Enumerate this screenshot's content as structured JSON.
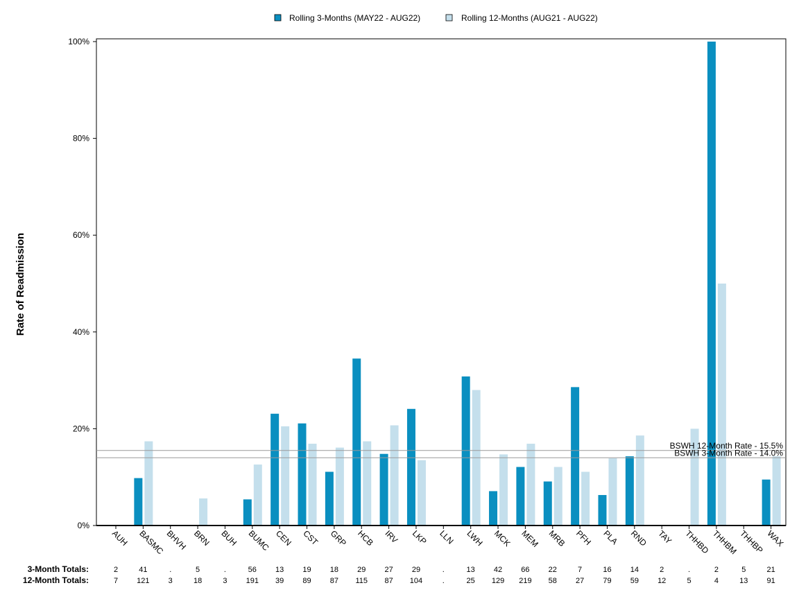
{
  "chart_data": {
    "type": "bar",
    "ylabel": "Rate of Readmission",
    "ylim": [
      0,
      100
    ],
    "yticks": [
      0,
      20,
      40,
      60,
      80,
      100
    ],
    "ytick_labels": [
      "0%",
      "20%",
      "40%",
      "60%",
      "80%",
      "100%"
    ],
    "legend_position": "top-center",
    "grid": false,
    "colors": {
      "series_3m": "#0a8fc0",
      "series_12m": "#c4dfec",
      "reference": "#999999"
    },
    "categories": [
      "AUH",
      "BASMC",
      "BHVH",
      "BRN",
      "BUH",
      "BUMC",
      "CEN",
      "CST",
      "GRP",
      "HCB",
      "IRV",
      "LKP",
      "LLN",
      "LWH",
      "MCK",
      "MEM",
      "MRB",
      "PFH",
      "PLA",
      "RND",
      "TAY",
      "THHBD",
      "THHBM",
      "THHBP",
      "WAX"
    ],
    "series": [
      {
        "name": "Rolling 3-Months (MAY22 - AUG22)",
        "values": [
          0,
          9.8,
          null,
          0,
          null,
          5.4,
          23.1,
          21.1,
          11.1,
          34.5,
          14.8,
          24.1,
          null,
          30.8,
          7.1,
          12.1,
          9.1,
          28.6,
          6.3,
          14.3,
          0,
          null,
          100,
          0,
          9.5
        ]
      },
      {
        "name": "Rolling 12-Months (AUG21 - AUG22)",
        "values": [
          0,
          17.4,
          0,
          5.6,
          0,
          12.6,
          20.5,
          16.9,
          16.1,
          17.4,
          20.7,
          13.5,
          null,
          28.0,
          14.7,
          16.9,
          12.1,
          11.1,
          13.9,
          18.6,
          0,
          20.0,
          50.0,
          0,
          14.3
        ]
      }
    ],
    "reference_lines": [
      {
        "label": "BSWH 12-Month Rate - 15.5%",
        "value": 15.5
      },
      {
        "label": "BSWH  3-Month Rate - 14.0%",
        "value": 14.0
      }
    ],
    "totals": {
      "label_3m": "3-Month Totals:",
      "label_12m": "12-Month Totals:",
      "values_3m": [
        "2",
        "41",
        ".",
        "5",
        ".",
        "56",
        "13",
        "19",
        "18",
        "29",
        "27",
        "29",
        ".",
        "13",
        "42",
        "66",
        "22",
        "7",
        "16",
        "14",
        "2",
        ".",
        "2",
        "5",
        "21"
      ],
      "values_12m": [
        "7",
        "121",
        "3",
        "18",
        "3",
        "191",
        "39",
        "89",
        "87",
        "115",
        "87",
        "104",
        ".",
        "25",
        "129",
        "219",
        "58",
        "27",
        "79",
        "59",
        "12",
        "5",
        "4",
        "13",
        "91"
      ]
    }
  }
}
